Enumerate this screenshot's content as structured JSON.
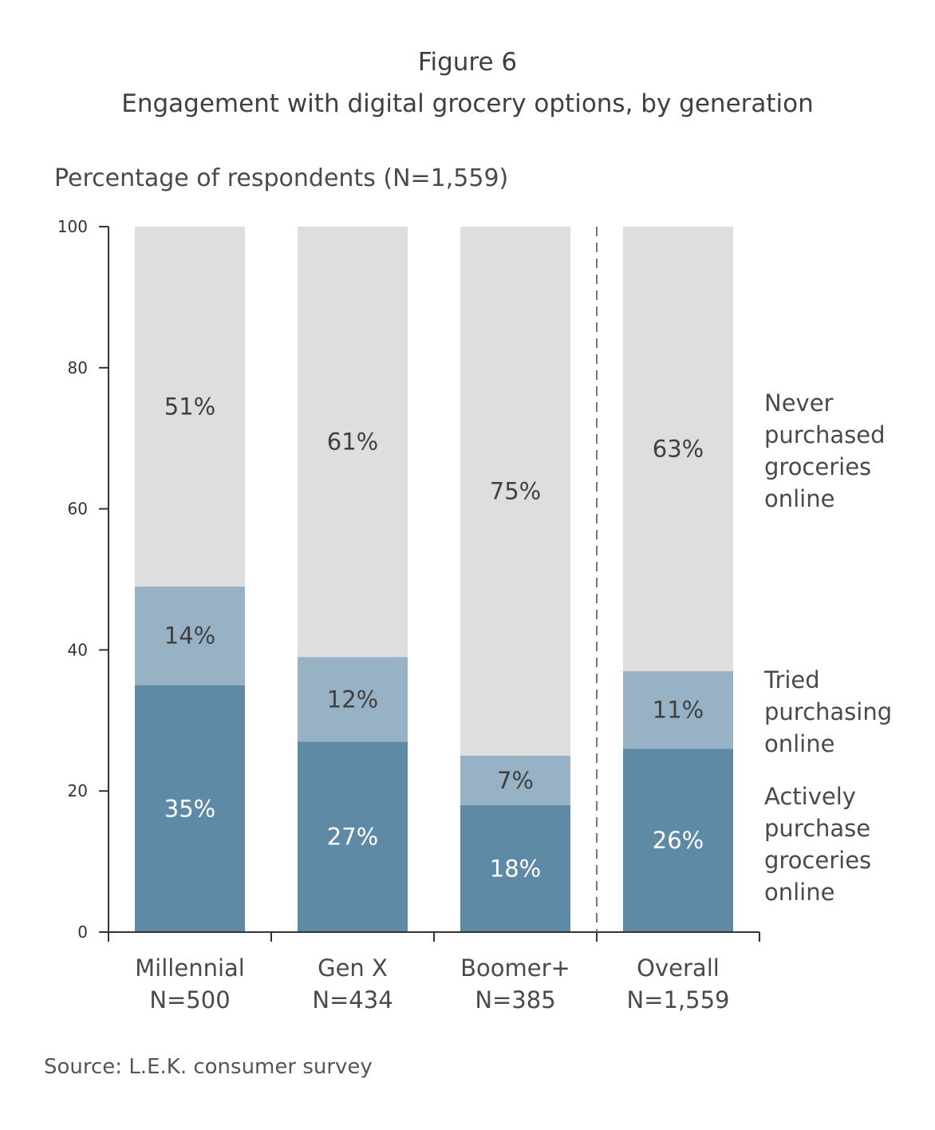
{
  "figure_label": "Figure 6",
  "title": "Engagement with digital grocery options, by generation",
  "ylabel": "Percentage of respondents (N=1,559)",
  "source": "Source: L.E.K. consumer survey",
  "colors": {
    "active": "#5e8aa5",
    "tried": "#98b2c5",
    "never": "#dedede",
    "axis": "#333333",
    "divider": "#777777"
  },
  "chart_data": {
    "type": "bar",
    "stacked": true,
    "categories": [
      "Millennial",
      "Gen X",
      "Boomer+",
      "Overall"
    ],
    "category_sublabels": [
      "N=500",
      "N=434",
      "N=385",
      "N=1,559"
    ],
    "ylim": [
      0,
      100
    ],
    "yticks": [
      0,
      20,
      40,
      60,
      80,
      100
    ],
    "divider_before_category": "Overall",
    "series": [
      {
        "name": "Actively purchase groceries online",
        "legend_lines": [
          "Actively",
          "purchase",
          "groceries",
          "online"
        ],
        "values": [
          35,
          27,
          18,
          26
        ],
        "labels": [
          "35%",
          "27%",
          "18%",
          "26%"
        ]
      },
      {
        "name": "Tried purchasing online",
        "legend_lines": [
          "Tried",
          "purchasing",
          "online"
        ],
        "values": [
          14,
          12,
          7,
          11
        ],
        "labels": [
          "14%",
          "12%",
          "7%",
          "11%"
        ]
      },
      {
        "name": "Never purchased groceries online",
        "legend_lines": [
          "Never",
          "purchased",
          "groceries",
          "online"
        ],
        "values": [
          51,
          61,
          75,
          63
        ],
        "labels": [
          "51%",
          "61%",
          "75%",
          "63%"
        ]
      }
    ]
  }
}
